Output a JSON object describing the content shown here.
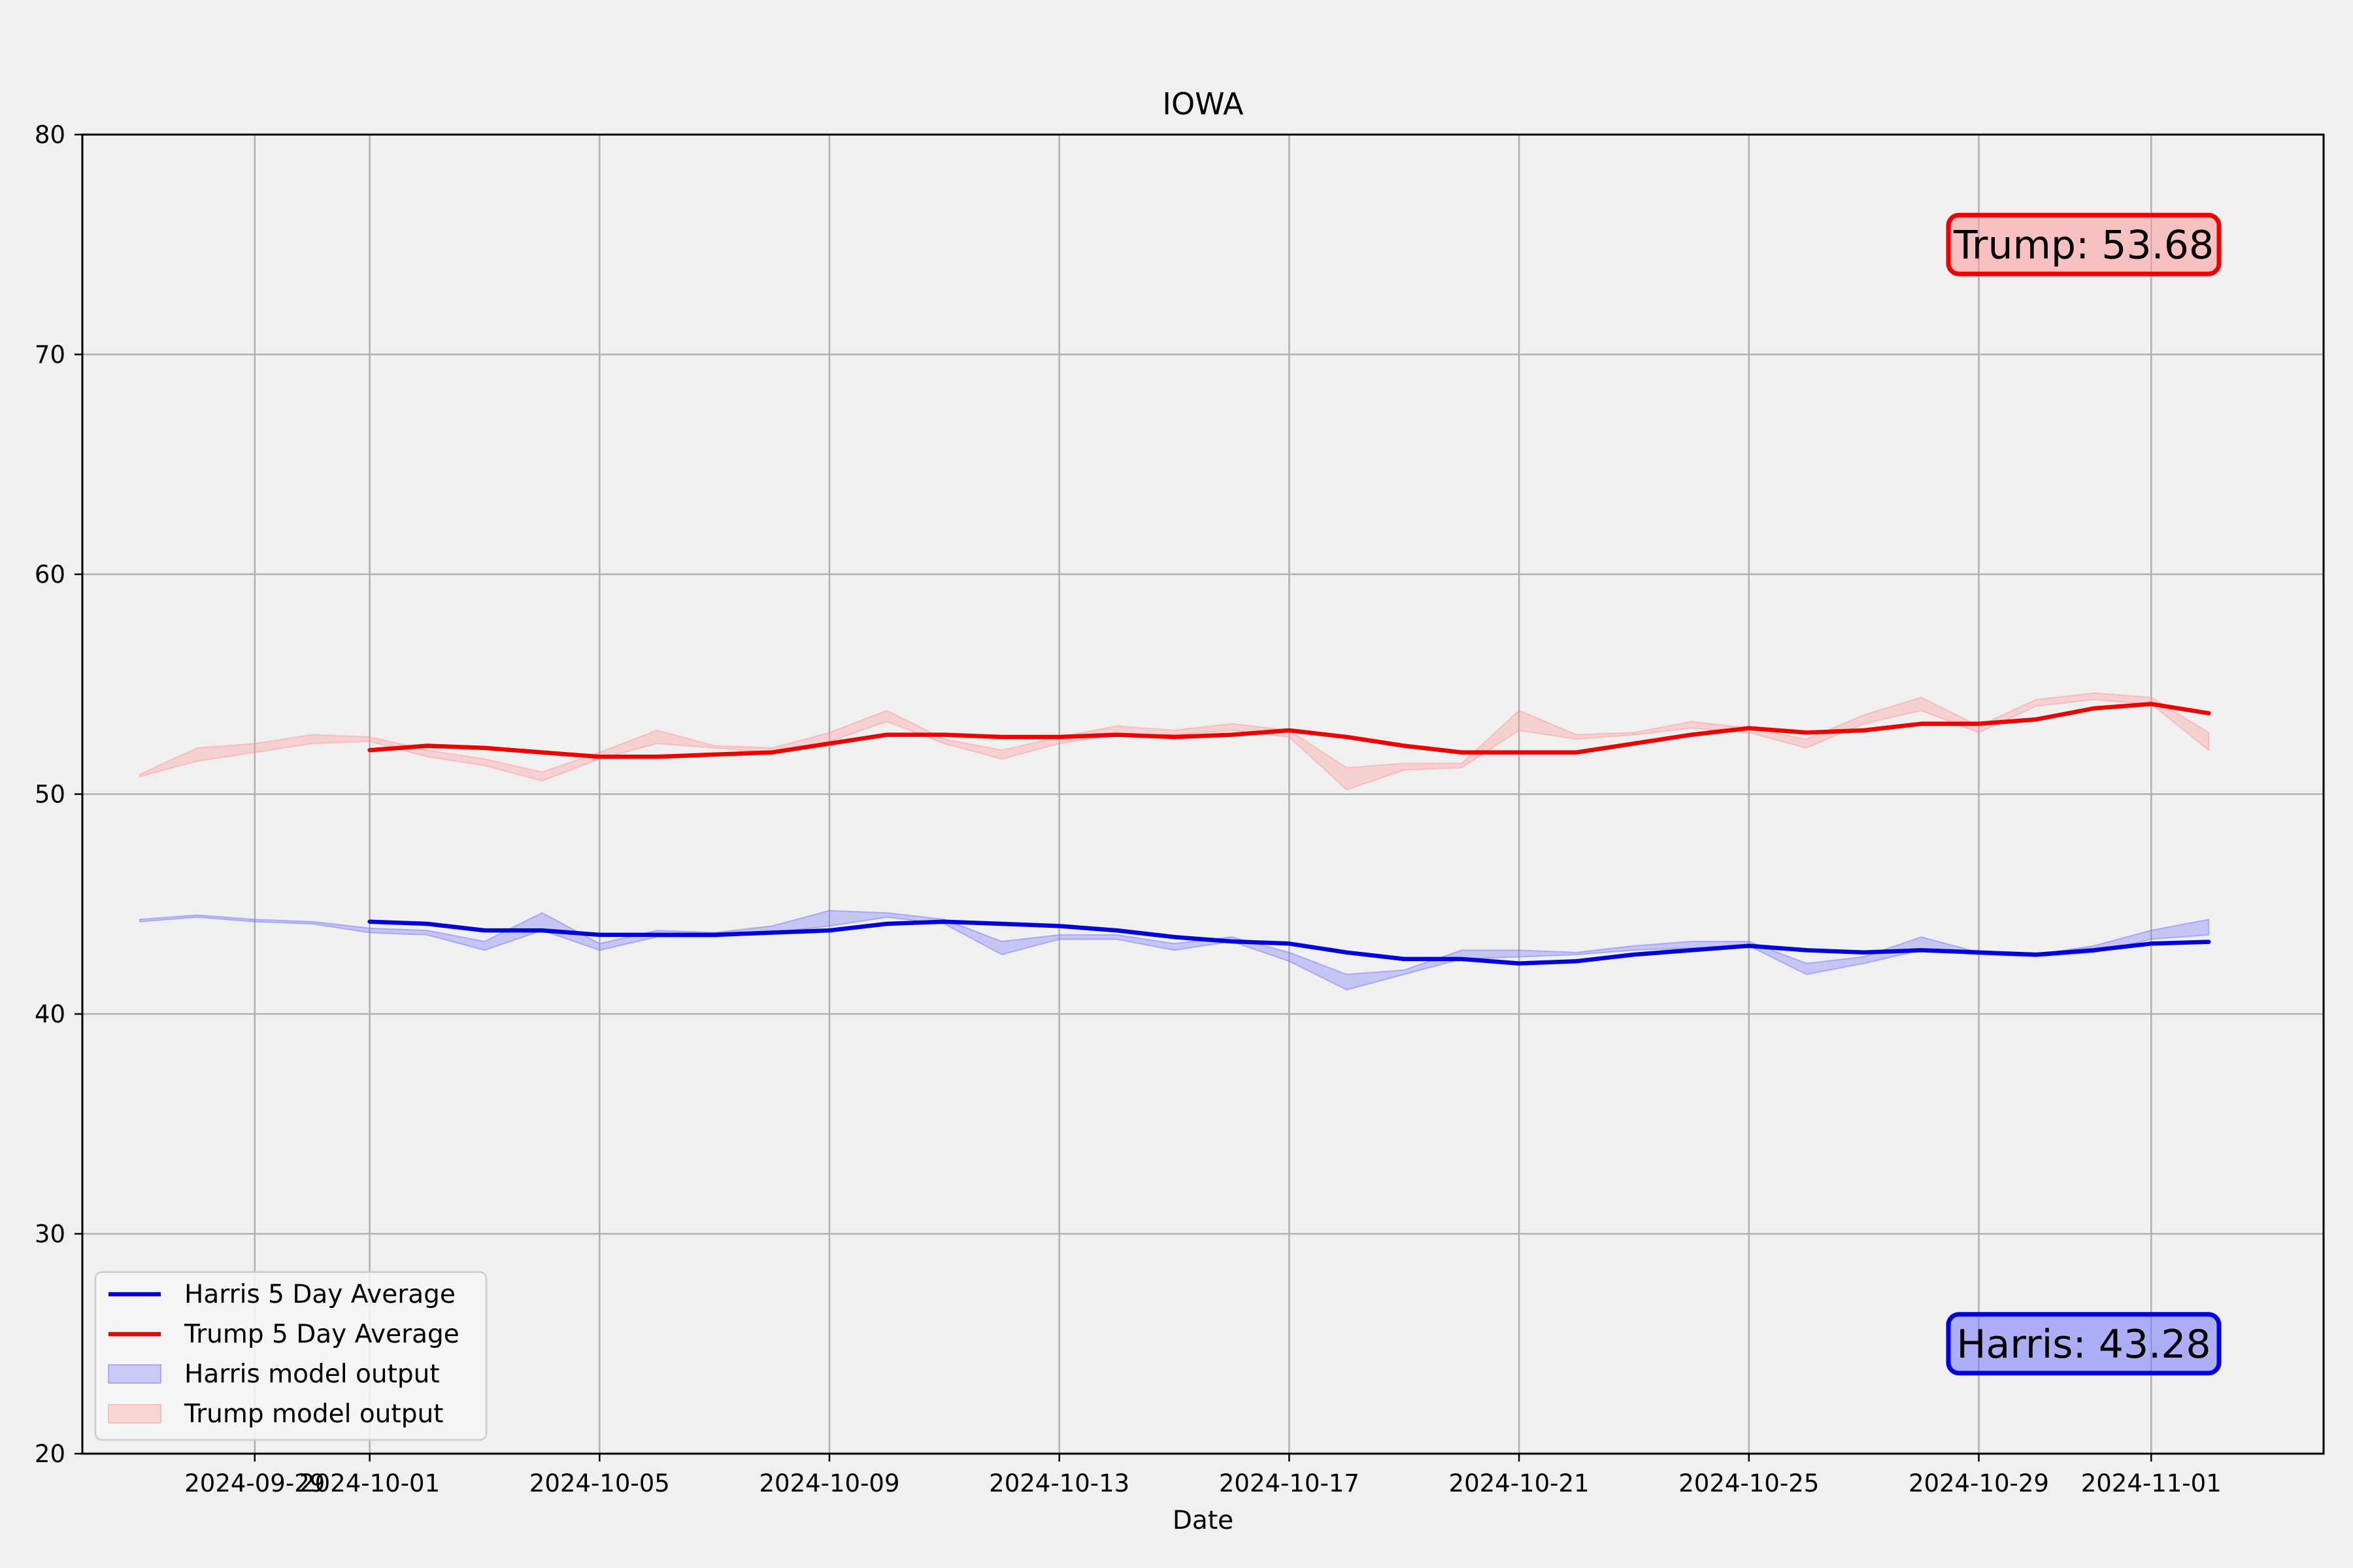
{
  "chart_data": {
    "type": "line",
    "title": "IOWA",
    "xlabel": "Date",
    "ylabel": "",
    "ylim": [
      20,
      80
    ],
    "xlim": [
      "2024-09-26",
      "2024-11-04"
    ],
    "grid": true,
    "legend_position": "lower-left",
    "x_ticks": [
      "2024-09-29",
      "2024-10-01",
      "2024-10-05",
      "2024-10-09",
      "2024-10-13",
      "2024-10-17",
      "2024-10-21",
      "2024-10-25",
      "2024-10-29",
      "2024-11-01"
    ],
    "y_ticks": [
      20,
      30,
      40,
      50,
      60,
      70,
      80
    ],
    "colors": {
      "harris": "#0000dd",
      "trump": "#ee0000",
      "harris_band": "#7777ff",
      "trump_band": "#ff9999",
      "grid": "#b0b0b0",
      "background": "#f0f0f0"
    },
    "series": [
      {
        "name": "Harris 5 Day Average",
        "key": "harris",
        "x": [
          "2024-10-01",
          "2024-10-02",
          "2024-10-03",
          "2024-10-04",
          "2024-10-05",
          "2024-10-06",
          "2024-10-07",
          "2024-10-08",
          "2024-10-09",
          "2024-10-10",
          "2024-10-11",
          "2024-10-12",
          "2024-10-13",
          "2024-10-14",
          "2024-10-15",
          "2024-10-16",
          "2024-10-17",
          "2024-10-18",
          "2024-10-19",
          "2024-10-20",
          "2024-10-21",
          "2024-10-22",
          "2024-10-23",
          "2024-10-24",
          "2024-10-25",
          "2024-10-26",
          "2024-10-27",
          "2024-10-28",
          "2024-10-29",
          "2024-10-30",
          "2024-10-31",
          "2024-11-01",
          "2024-11-02"
        ],
        "y": [
          44.2,
          44.1,
          43.8,
          43.8,
          43.6,
          43.6,
          43.6,
          43.7,
          43.8,
          44.1,
          44.2,
          44.1,
          44.0,
          43.8,
          43.5,
          43.3,
          43.2,
          42.8,
          42.5,
          42.5,
          42.3,
          42.4,
          42.7,
          42.9,
          43.1,
          42.9,
          42.8,
          42.9,
          42.8,
          42.7,
          42.9,
          43.2,
          43.28
        ]
      },
      {
        "name": "Trump 5 Day Average",
        "key": "trump",
        "x": [
          "2024-10-01",
          "2024-10-02",
          "2024-10-03",
          "2024-10-04",
          "2024-10-05",
          "2024-10-06",
          "2024-10-07",
          "2024-10-08",
          "2024-10-09",
          "2024-10-10",
          "2024-10-11",
          "2024-10-12",
          "2024-10-13",
          "2024-10-14",
          "2024-10-15",
          "2024-10-16",
          "2024-10-17",
          "2024-10-18",
          "2024-10-19",
          "2024-10-20",
          "2024-10-21",
          "2024-10-22",
          "2024-10-23",
          "2024-10-24",
          "2024-10-25",
          "2024-10-26",
          "2024-10-27",
          "2024-10-28",
          "2024-10-29",
          "2024-10-30",
          "2024-10-31",
          "2024-11-01",
          "2024-11-02"
        ],
        "y": [
          52.0,
          52.2,
          52.1,
          51.9,
          51.7,
          51.7,
          51.8,
          51.9,
          52.3,
          52.7,
          52.7,
          52.6,
          52.6,
          52.7,
          52.6,
          52.7,
          52.9,
          52.6,
          52.2,
          51.9,
          51.9,
          51.9,
          52.3,
          52.7,
          53.0,
          52.8,
          52.9,
          53.2,
          53.2,
          53.4,
          53.9,
          54.1,
          53.68
        ]
      }
    ],
    "bands": [
      {
        "name": "Harris model output",
        "key": "harris",
        "x": [
          "2024-09-27",
          "2024-09-28",
          "2024-09-29",
          "2024-09-30",
          "2024-10-01",
          "2024-10-02",
          "2024-10-03",
          "2024-10-04",
          "2024-10-05",
          "2024-10-06",
          "2024-10-07",
          "2024-10-08",
          "2024-10-09",
          "2024-10-10",
          "2024-10-11",
          "2024-10-12",
          "2024-10-13",
          "2024-10-14",
          "2024-10-15",
          "2024-10-16",
          "2024-10-17",
          "2024-10-18",
          "2024-10-19",
          "2024-10-20",
          "2024-10-21",
          "2024-10-22",
          "2024-10-23",
          "2024-10-24",
          "2024-10-25",
          "2024-10-26",
          "2024-10-27",
          "2024-10-28",
          "2024-10-29",
          "2024-10-30",
          "2024-10-31",
          "2024-11-01",
          "2024-11-02"
        ],
        "low": [
          44.2,
          44.4,
          44.2,
          44.1,
          43.7,
          43.6,
          42.9,
          43.8,
          42.9,
          43.5,
          43.5,
          43.7,
          44.0,
          44.4,
          44.1,
          42.7,
          43.4,
          43.4,
          42.9,
          43.3,
          42.4,
          41.1,
          41.8,
          42.5,
          42.6,
          42.7,
          42.9,
          43.0,
          43.1,
          41.8,
          42.3,
          42.9,
          42.7,
          42.6,
          42.8,
          43.4,
          43.6
        ],
        "high": [
          44.3,
          44.5,
          44.3,
          44.2,
          43.9,
          43.8,
          43.3,
          44.6,
          43.2,
          43.8,
          43.7,
          44.0,
          44.7,
          44.6,
          44.3,
          43.3,
          43.6,
          43.6,
          43.2,
          43.5,
          42.8,
          41.8,
          42.0,
          42.9,
          42.9,
          42.8,
          43.1,
          43.3,
          43.3,
          42.3,
          42.6,
          43.5,
          42.8,
          42.7,
          43.1,
          43.8,
          44.3
        ]
      },
      {
        "name": "Trump model output",
        "key": "trump",
        "x": [
          "2024-09-27",
          "2024-09-28",
          "2024-09-29",
          "2024-09-30",
          "2024-10-01",
          "2024-10-02",
          "2024-10-03",
          "2024-10-04",
          "2024-10-05",
          "2024-10-06",
          "2024-10-07",
          "2024-10-08",
          "2024-10-09",
          "2024-10-10",
          "2024-10-11",
          "2024-10-12",
          "2024-10-13",
          "2024-10-14",
          "2024-10-15",
          "2024-10-16",
          "2024-10-17",
          "2024-10-18",
          "2024-10-19",
          "2024-10-20",
          "2024-10-21",
          "2024-10-22",
          "2024-10-23",
          "2024-10-24",
          "2024-10-25",
          "2024-10-26",
          "2024-10-27",
          "2024-10-28",
          "2024-10-29",
          "2024-10-30",
          "2024-10-31",
          "2024-11-01",
          "2024-11-02"
        ],
        "low": [
          50.8,
          51.5,
          51.9,
          52.3,
          52.4,
          51.7,
          51.3,
          50.6,
          51.6,
          52.3,
          52.1,
          51.9,
          52.4,
          53.3,
          52.3,
          51.6,
          52.3,
          52.7,
          52.7,
          52.9,
          52.6,
          50.2,
          51.1,
          51.2,
          52.9,
          52.5,
          52.7,
          53.0,
          52.8,
          52.1,
          53.2,
          53.8,
          52.8,
          54.0,
          54.3,
          54.1,
          52.0
        ],
        "high": [
          50.9,
          52.1,
          52.3,
          52.7,
          52.6,
          52.0,
          51.6,
          51.0,
          51.9,
          52.9,
          52.2,
          52.1,
          52.8,
          53.8,
          52.5,
          52.0,
          52.6,
          53.1,
          52.9,
          53.2,
          52.9,
          51.2,
          51.4,
          51.4,
          53.8,
          52.7,
          52.8,
          53.3,
          53.0,
          52.5,
          53.6,
          54.4,
          53.1,
          54.3,
          54.6,
          54.4,
          52.8
        ]
      }
    ],
    "annotations": [
      {
        "key": "trump",
        "text": "Trump: 53.68",
        "value": 53.68,
        "y": 75
      },
      {
        "key": "harris",
        "text": "Harris: 43.28",
        "value": 43.28,
        "y": 25
      }
    ]
  }
}
